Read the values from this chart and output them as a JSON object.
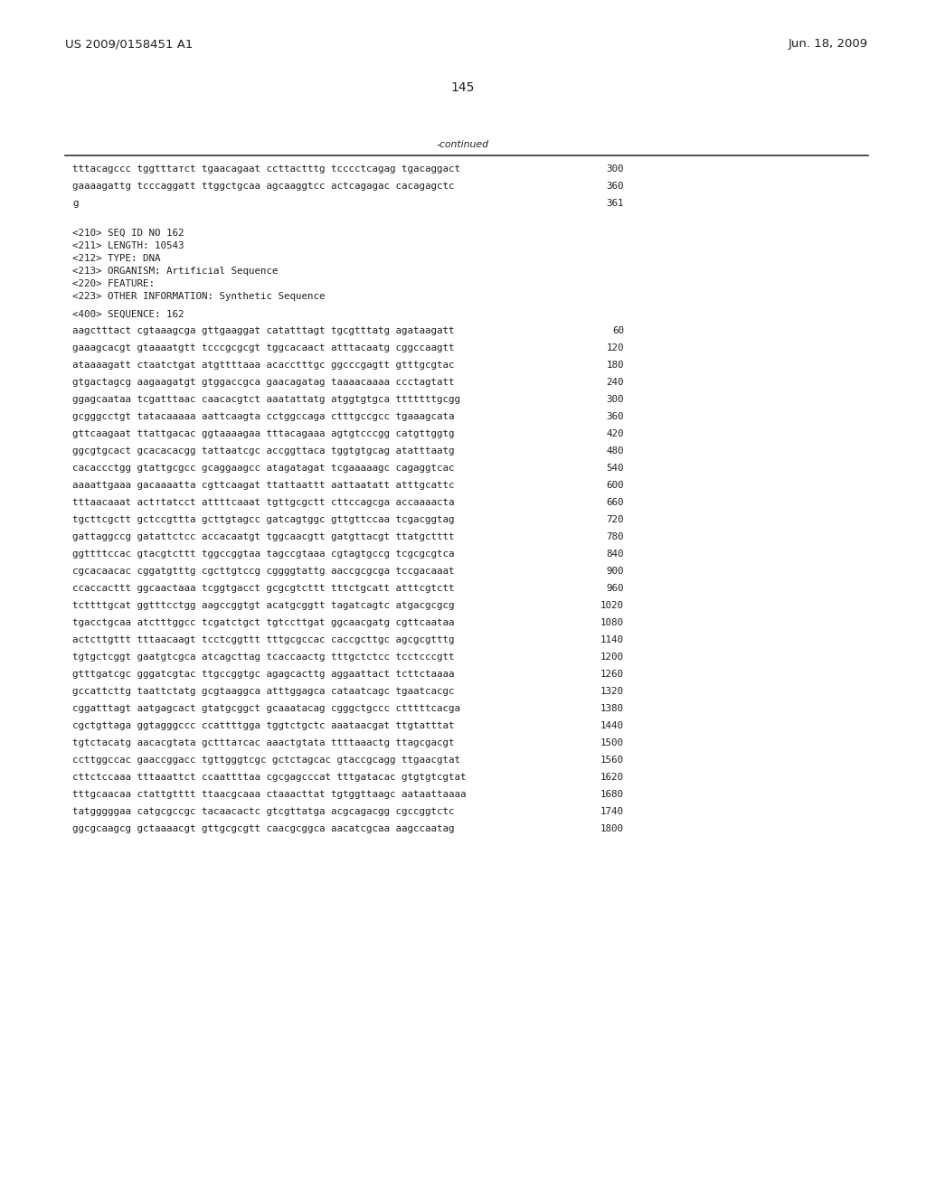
{
  "header_left": "US 2009/0158451 A1",
  "header_right": "Jun. 18, 2009",
  "page_number": "145",
  "continued_label": "-continued",
  "background_color": "#ffffff",
  "text_color": "#231f20",
  "font_size_header": 9.5,
  "font_size_body": 7.8,
  "font_size_page": 10.0,
  "continued_lines": [
    [
      "tttacagccc tggtttатct tgaacagaat ccttactttg tcccctcagag tgacaggact",
      "300"
    ],
    [
      "gaaaagattg tcccaggatt ttggctgcaa agcaaggtcc actcagagac cacagagctc",
      "360"
    ],
    [
      "g",
      "361"
    ]
  ],
  "metadata_lines": [
    "<210> SEQ ID NO 162",
    "<211> LENGTH: 10543",
    "<212> TYPE: DNA",
    "<213> ORGANISM: Artificial Sequence",
    "<220> FEATURE:",
    "<223> OTHER INFORMATION: Synthetic Sequence"
  ],
  "sequence_label": "<400> SEQUENCE: 162",
  "sequence_lines": [
    [
      "aagctttact cgtaaagcga gttgaaggat catatttagt tgcgtttatg agataagatt",
      "60"
    ],
    [
      "gaaagcacgt gtaaaatgtt tcccgcgcgt tggcacaact atttacaatg cggccaagtt",
      "120"
    ],
    [
      "ataaaagatt ctaatctgat atgttttaaa acacctttgc ggcccgagtt gtttgcgtac",
      "180"
    ],
    [
      "gtgactagcg aagaagatgt gtggaccgca gaacagatag taaaacaaaa ccctagtatt",
      "240"
    ],
    [
      "ggagcaataa tcgatttaac caacacgtct aaatattatg atggtgtgca tttttttgcgg",
      "300"
    ],
    [
      "gcgggcctgt tatacaaaaa aattcaagta cctggccaga ctttgccgcc tgaaagcata",
      "360"
    ],
    [
      "gttcaagaat ttattgacac ggtaaaagaa tttacagaaa agtgtcccgg catgttggtg",
      "420"
    ],
    [
      "ggcgtgcact gcacacacgg tattaatcgc accggttaca tggtgtgcag atatttaatg",
      "480"
    ],
    [
      "cacaccctgg gtattgcgcc gcaggaagcc atagatagat tcgaaaaagc cagaggtcac",
      "540"
    ],
    [
      "aaaattgaaa gacaaaatta cgttcaagat ttattaattt aattaatatt atttgcattc",
      "600"
    ],
    [
      "tttaacaaat actтtatcct attttcaaat tgttgcgctt cttccagcga accaaaacta",
      "660"
    ],
    [
      "tgcttcgctt gctccgttta gcttgtagcc gatcagtggc gttgttccaa tcgacggtag",
      "720"
    ],
    [
      "gattaggccg gatattctcc accacaatgt tggcaacgtt gatgttacgt ttatgctttt",
      "780"
    ],
    [
      "ggttttccac gtacgtcttt tggccggtaa tagccgtaaa cgtagtgccg tcgcgcgtca",
      "840"
    ],
    [
      "cgcacaacac cggatgtttg cgcttgtccg cggggtattg aaccgcgcga tccgacaaat",
      "900"
    ],
    [
      "ccaccacttt ggcaactaaa tcggtgacct gcgcgtcttt tttctgcatt atttcgtctt",
      "960"
    ],
    [
      "tcttttgcat ggtttcctgg aagccggtgt acatgcggtt tagatcagtc atgacgcgcg",
      "1020"
    ],
    [
      "tgacctgcaa atctttggcc tcgatctgct tgtccttgat ggcaacgatg cgttcaataa",
      "1080"
    ],
    [
      "actcttgttt tttaacaagt tcctcggttt tttgcgccac caccgcttgc agcgcgtttg",
      "1140"
    ],
    [
      "tgtgctcggt gaatgtcgca atcagcttag tcaccaactg tttgctctcc tcctcccgtt",
      "1200"
    ],
    [
      "gtttgatcgc gggatcgtac ttgccggtgc agagcacttg aggaattact tcttctaaaa",
      "1260"
    ],
    [
      "gccattcttg taattctatg gcgtaaggca atttggagca cataatcagc tgaatcacgc",
      "1320"
    ],
    [
      "cggatttagt aatgagcact gtatgcggct gcaaatacag cgggctgccc ctttttcacga",
      "1380"
    ],
    [
      "cgctgttaga ggtagggccc ccattttgga tggtctgctc aaataacgat ttgtatttat",
      "1440"
    ],
    [
      "tgtctacatg aacacgtata gctttатcac aaactgtata ttttaaactg ttagcgacgt",
      "1500"
    ],
    [
      "ccttggccac gaaccggacc tgttgggtcgc gctctagcac gtaccgcagg ttgaacgtat",
      "1560"
    ],
    [
      "cttctccaaa tttaaattct ccaattttaa cgcgagcccat tttgatacac gtgtgtcgtat",
      "1620"
    ],
    [
      "tttgcaacaa ctattgtttt ttaacgcaaa ctaaacttat tgtggttaagc aataattaaaa",
      "1680"
    ],
    [
      "tatgggggaa catgcgccgc tacaacactc gtcgttatga acgcagacgg cgccggtctc",
      "1740"
    ],
    [
      "ggcgcaagcg gctaaaacgt gttgcgcgtt caacgcggca aacatcgcaa aagccaatag",
      "1800"
    ]
  ]
}
